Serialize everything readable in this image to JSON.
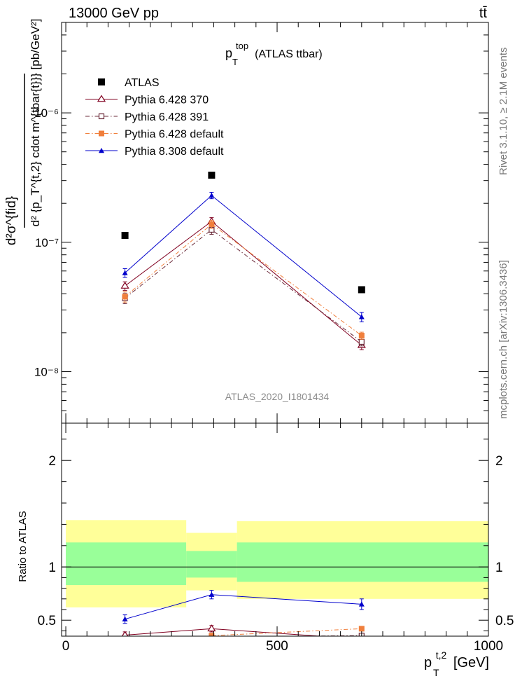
{
  "header": {
    "left": "13000 GeV pp",
    "right": "tt̄"
  },
  "side_labels": {
    "rivet": "Rivet 3.1.10, ≥ 2.1M events",
    "mcplots": "mcplots.cern.ch [arXiv:1306.3436]"
  },
  "chart_data": [
    {
      "type": "scatter",
      "title": "p_T^top (ATLAS ttbar)",
      "title_main": "p",
      "title_sup": "top",
      "title_sub": "T",
      "title_rest": "(ATLAS ttbar)",
      "watermark": "ATLAS_2020_I1801434",
      "ylabel_numerator": "d²σ^{fid}",
      "ylabel_denominator": "d² {p_T^{t,2} cdot m^{tbar{t}}} [pb/GeV²]",
      "yscale": "log",
      "ylim": [
        4e-09,
        5e-06
      ],
      "xlim": [
        -10,
        1000
      ],
      "ytick_labels": [
        "10⁻⁸",
        "10⁻⁷",
        "10⁻⁶"
      ],
      "legend_position": "top-left",
      "series": [
        {
          "name": "ATLAS",
          "color": "#000000",
          "marker": "square",
          "x": [
            140,
            345,
            700
          ],
          "y": [
            1.13e-07,
            3.3e-07,
            4.3e-08
          ],
          "yerr": [
            0,
            0,
            0
          ],
          "line": false
        },
        {
          "name": "Pythia 6.428 370",
          "color": "#800020",
          "marker": "triangle-open",
          "x": [
            140,
            345,
            700
          ],
          "y": [
            4.6e-08,
            1.45e-07,
            1.6e-08
          ],
          "yerr": [
            3.5e-09,
            1e-08,
            1.2e-09
          ],
          "line": "solid"
        },
        {
          "name": "Pythia 6.428 391",
          "color": "#6b2b3a",
          "marker": "square-open",
          "x": [
            140,
            345,
            700
          ],
          "y": [
            3.7e-08,
            1.25e-07,
            1.7e-08
          ],
          "yerr": [
            3.5e-09,
            1e-08,
            1.2e-09
          ],
          "line": "dashdot"
        },
        {
          "name": "Pythia 6.428 default",
          "color": "#f07f3c",
          "marker": "square",
          "x": [
            140,
            345,
            700
          ],
          "y": [
            3.8e-08,
            1.38e-07,
            1.9e-08
          ],
          "yerr": [
            3.5e-09,
            1e-08,
            1.2e-09
          ],
          "line": "dashdot"
        },
        {
          "name": "Pythia 8.308 default",
          "color": "#0000cc",
          "marker": "triangle",
          "x": [
            140,
            345,
            700
          ],
          "y": [
            5.8e-08,
            2.3e-07,
            2.65e-08
          ],
          "yerr": [
            4.5e-09,
            1.3e-08,
            2.2e-09
          ],
          "line": "solid"
        }
      ]
    },
    {
      "type": "scatter",
      "ylabel": "Ratio to ATLAS",
      "xlabel": "p_T^{t,2} [GeV]",
      "xlabel_main": "p",
      "xlabel_sup": "t,2",
      "xlabel_sub": "T",
      "xlabel_unit": "[GeV]",
      "xlim": [
        -10,
        1000
      ],
      "ylim": [
        0.35,
        2.35
      ],
      "yticks": [
        0.5,
        1,
        2
      ],
      "ytick_labels": [
        "0.5",
        "1",
        "2"
      ],
      "xticks": [
        0,
        500,
        1000
      ],
      "xtick_labels": [
        "0",
        "500",
        "1000"
      ],
      "bands": [
        {
          "x0": 0,
          "x1": 285,
          "yellow": [
            0.62,
            1.44
          ],
          "green": [
            0.83,
            1.23
          ]
        },
        {
          "x0": 285,
          "x1": 405,
          "yellow": [
            0.78,
            1.32
          ],
          "green": [
            0.9,
            1.15
          ]
        },
        {
          "x0": 405,
          "x1": 1000,
          "yellow": [
            0.7,
            1.43
          ],
          "green": [
            0.86,
            1.23
          ]
        }
      ],
      "band_colors": {
        "yellow": "#ffff99",
        "green": "#99ff99"
      },
      "series": [
        {
          "name": "Pythia 6.428 370",
          "color": "#800020",
          "marker": "triangle-open",
          "x": [
            140,
            345,
            600
          ],
          "y": [
            0.36,
            0.42,
            0.35
          ],
          "yerr": [
            0.03,
            0.03,
            0
          ],
          "line": "solid",
          "show_markers": [
            true,
            true,
            false
          ]
        },
        {
          "name": "Pythia 6.428 391",
          "color": "#6b2b3a",
          "marker": "square-open",
          "x": [
            560,
            700
          ],
          "y": [
            0.35,
            0.355
          ],
          "yerr": [
            0,
            0
          ],
          "line": "dashdot",
          "show_markers": [
            false,
            true
          ]
        },
        {
          "name": "Pythia 6.428 default",
          "color": "#f07f3c",
          "marker": "square",
          "x": [
            345,
            700
          ],
          "y": [
            0.355,
            0.42
          ],
          "yerr": [
            0,
            0
          ],
          "line": "dashdot",
          "show_markers": [
            true,
            true
          ]
        },
        {
          "name": "Pythia 8.308 default",
          "color": "#0000cc",
          "marker": "triangle",
          "x": [
            140,
            345,
            700
          ],
          "y": [
            0.51,
            0.74,
            0.65
          ],
          "yerr": [
            0.04,
            0.04,
            0.05
          ],
          "line": "solid",
          "show_markers": [
            true,
            true,
            true
          ]
        }
      ]
    }
  ]
}
